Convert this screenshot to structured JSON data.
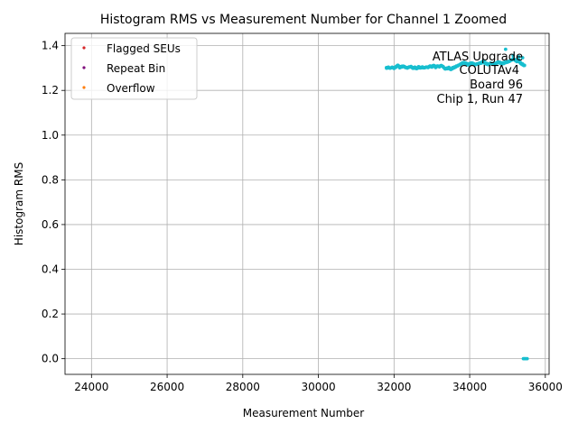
{
  "chart_data": {
    "type": "scatter",
    "title": "Histogram RMS vs Measurement Number for Channel 1 Zoomed",
    "xlabel": "Measurement Number",
    "ylabel": "Histogram RMS",
    "xlim": [
      23300,
      36100
    ],
    "ylim": [
      -0.07,
      1.455
    ],
    "x_ticks": [
      24000,
      26000,
      28000,
      30000,
      32000,
      34000,
      36000
    ],
    "y_ticks": [
      0.0,
      0.2,
      0.4,
      0.6,
      0.8,
      1.0,
      1.2,
      1.4
    ],
    "grid": true,
    "legend_position": "top-left",
    "legend": [
      {
        "label": "Flagged SEUs",
        "color": "#d62728"
      },
      {
        "label": "Repeat Bin",
        "color": "#7f0f7e"
      },
      {
        "label": "Overflow",
        "color": "#ff7f0e"
      }
    ],
    "annotation": [
      "ATLAS Upgrade",
      "COLUTAv4",
      "Board 96",
      "Chip 1, Run 47"
    ],
    "series": [
      {
        "name": "Histogram RMS",
        "color": "#17becf",
        "x_start": 31800,
        "x_end": 35450,
        "baseline": 1.302,
        "points": [
          [
            31800,
            1.302
          ],
          [
            31850,
            1.304
          ],
          [
            31900,
            1.3
          ],
          [
            31950,
            1.303
          ],
          [
            32000,
            1.298
          ],
          [
            32050,
            1.303
          ],
          [
            32100,
            1.309
          ],
          [
            32150,
            1.301
          ],
          [
            32200,
            1.304
          ],
          [
            32250,
            1.306
          ],
          [
            32300,
            1.302
          ],
          [
            32350,
            1.3
          ],
          [
            32400,
            1.305
          ],
          [
            32450,
            1.307
          ],
          [
            32500,
            1.302
          ],
          [
            32550,
            1.304
          ],
          [
            32600,
            1.301
          ],
          [
            32650,
            1.306
          ],
          [
            32700,
            1.303
          ],
          [
            32750,
            1.305
          ],
          [
            32800,
            1.301
          ],
          [
            32850,
            1.304
          ],
          [
            32900,
            1.302
          ],
          [
            32950,
            1.306
          ],
          [
            33000,
            1.304
          ],
          [
            33050,
            1.308
          ],
          [
            33100,
            1.302
          ],
          [
            33150,
            1.307
          ],
          [
            33200,
            1.305
          ],
          [
            33250,
            1.311
          ],
          [
            33300,
            1.306
          ],
          [
            33350,
            1.298
          ],
          [
            33400,
            1.3
          ],
          [
            33450,
            1.303
          ],
          [
            33500,
            1.297
          ],
          [
            33550,
            1.302
          ],
          [
            33600,
            1.305
          ],
          [
            33650,
            1.309
          ],
          [
            33700,
            1.312
          ],
          [
            33750,
            1.316
          ],
          [
            33800,
            1.32
          ],
          [
            33850,
            1.322
          ],
          [
            33900,
            1.318
          ],
          [
            33950,
            1.314
          ],
          [
            34000,
            1.316
          ],
          [
            34050,
            1.32
          ],
          [
            34100,
            1.318
          ],
          [
            34150,
            1.315
          ],
          [
            34200,
            1.319
          ],
          [
            34250,
            1.322
          ],
          [
            34300,
            1.325
          ],
          [
            34350,
            1.33
          ],
          [
            34400,
            1.326
          ],
          [
            34450,
            1.321
          ],
          [
            34500,
            1.318
          ],
          [
            34550,
            1.322
          ],
          [
            34600,
            1.32
          ],
          [
            34650,
            1.316
          ],
          [
            34700,
            1.32
          ],
          [
            34750,
            1.324
          ],
          [
            34800,
            1.322
          ],
          [
            34850,
            1.318
          ],
          [
            34900,
            1.32
          ],
          [
            34950,
            1.324
          ],
          [
            35000,
            1.326
          ],
          [
            35050,
            1.33
          ],
          [
            35100,
            1.336
          ],
          [
            35150,
            1.342
          ],
          [
            35200,
            1.338
          ],
          [
            35250,
            1.332
          ],
          [
            35300,
            1.336
          ],
          [
            35350,
            1.324
          ],
          [
            35400,
            1.318
          ],
          [
            35450,
            1.312
          ],
          [
            34950,
            1.384
          ],
          [
            35150,
            1.356
          ],
          [
            35300,
            1.35
          ],
          [
            35400,
            1.346
          ],
          [
            35420,
            0.0
          ],
          [
            35450,
            0.0
          ],
          [
            35480,
            0.0
          ],
          [
            35520,
            0.0
          ]
        ]
      }
    ]
  }
}
